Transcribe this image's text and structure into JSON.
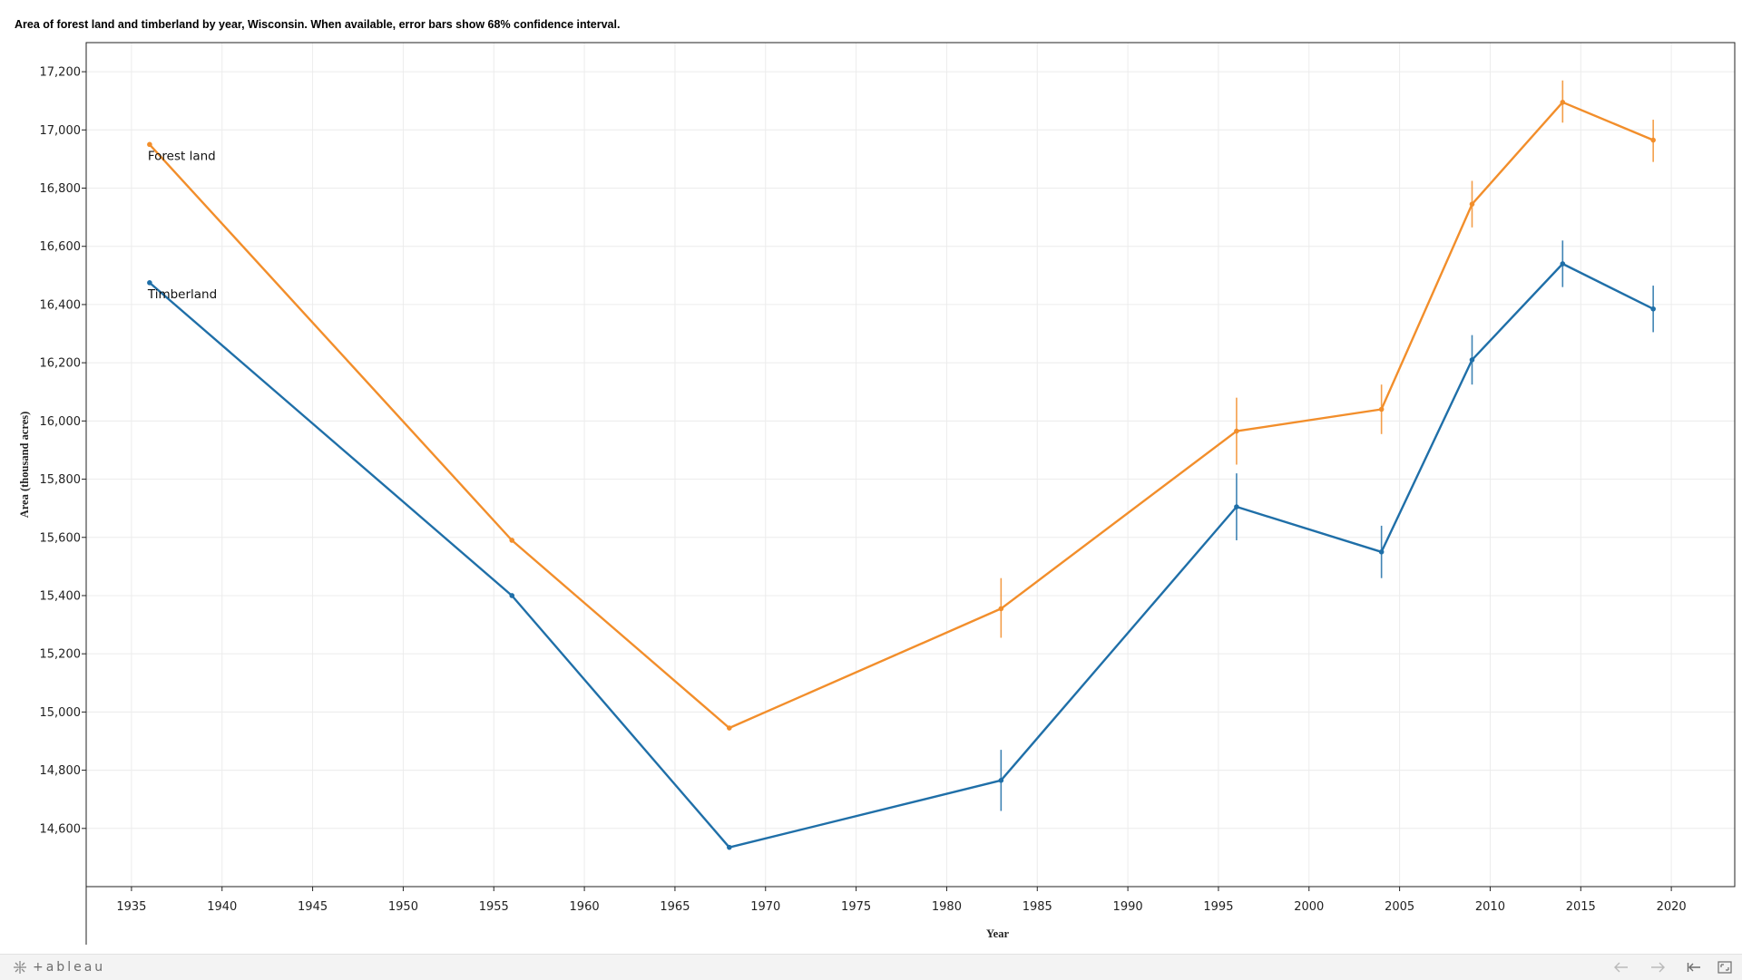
{
  "chart_data": {
    "type": "line",
    "title": "Area of forest land and timberland by year, Wisconsin. When available, error bars show 68% confidence interval.",
    "xlabel": "Year",
    "ylabel": "Area (thousand acres)",
    "xlim": [
      1932.5,
      2023.5
    ],
    "ylim": [
      14400,
      17300
    ],
    "x_ticks": [
      1935,
      1940,
      1945,
      1950,
      1955,
      1960,
      1965,
      1970,
      1975,
      1980,
      1985,
      1990,
      1995,
      2000,
      2005,
      2010,
      2015,
      2020
    ],
    "y_ticks": [
      14600,
      14800,
      15000,
      15200,
      15400,
      15600,
      15800,
      16000,
      16200,
      16400,
      16600,
      16800,
      17000,
      17200
    ],
    "grid": true,
    "legend": "inline labels at start of lines",
    "series": [
      {
        "name": "Forest land",
        "color": "#f28e2b",
        "points": [
          {
            "x": 1936,
            "y": 16950,
            "lo": null,
            "hi": null
          },
          {
            "x": 1956,
            "y": 15590,
            "lo": null,
            "hi": null
          },
          {
            "x": 1968,
            "y": 14945,
            "lo": null,
            "hi": null
          },
          {
            "x": 1983,
            "y": 15355,
            "lo": 15255,
            "hi": 15460
          },
          {
            "x": 1996,
            "y": 15965,
            "lo": 15850,
            "hi": 16080
          },
          {
            "x": 2004,
            "y": 16040,
            "lo": 15955,
            "hi": 16125
          },
          {
            "x": 2009,
            "y": 16745,
            "lo": 16665,
            "hi": 16825
          },
          {
            "x": 2014,
            "y": 17095,
            "lo": 17025,
            "hi": 17170
          },
          {
            "x": 2019,
            "y": 16965,
            "lo": 16890,
            "hi": 17035
          }
        ]
      },
      {
        "name": "Timberland",
        "color": "#1f6fa8",
        "points": [
          {
            "x": 1936,
            "y": 16475,
            "lo": null,
            "hi": null
          },
          {
            "x": 1956,
            "y": 15400,
            "lo": null,
            "hi": null
          },
          {
            "x": 1968,
            "y": 14535,
            "lo": null,
            "hi": null
          },
          {
            "x": 1983,
            "y": 14765,
            "lo": 14660,
            "hi": 14870
          },
          {
            "x": 1996,
            "y": 15705,
            "lo": 15590,
            "hi": 15820
          },
          {
            "x": 2004,
            "y": 15550,
            "lo": 15460,
            "hi": 15640
          },
          {
            "x": 2009,
            "y": 16210,
            "lo": 16125,
            "hi": 16295
          },
          {
            "x": 2014,
            "y": 16540,
            "lo": 16460,
            "hi": 16620
          },
          {
            "x": 2019,
            "y": 16385,
            "lo": 16305,
            "hi": 16465
          }
        ]
      }
    ]
  },
  "footer": {
    "logo_text": "+ableau",
    "buttons": [
      "undo-icon",
      "redo-icon",
      "revert-icon",
      "fullscreen-icon"
    ]
  }
}
